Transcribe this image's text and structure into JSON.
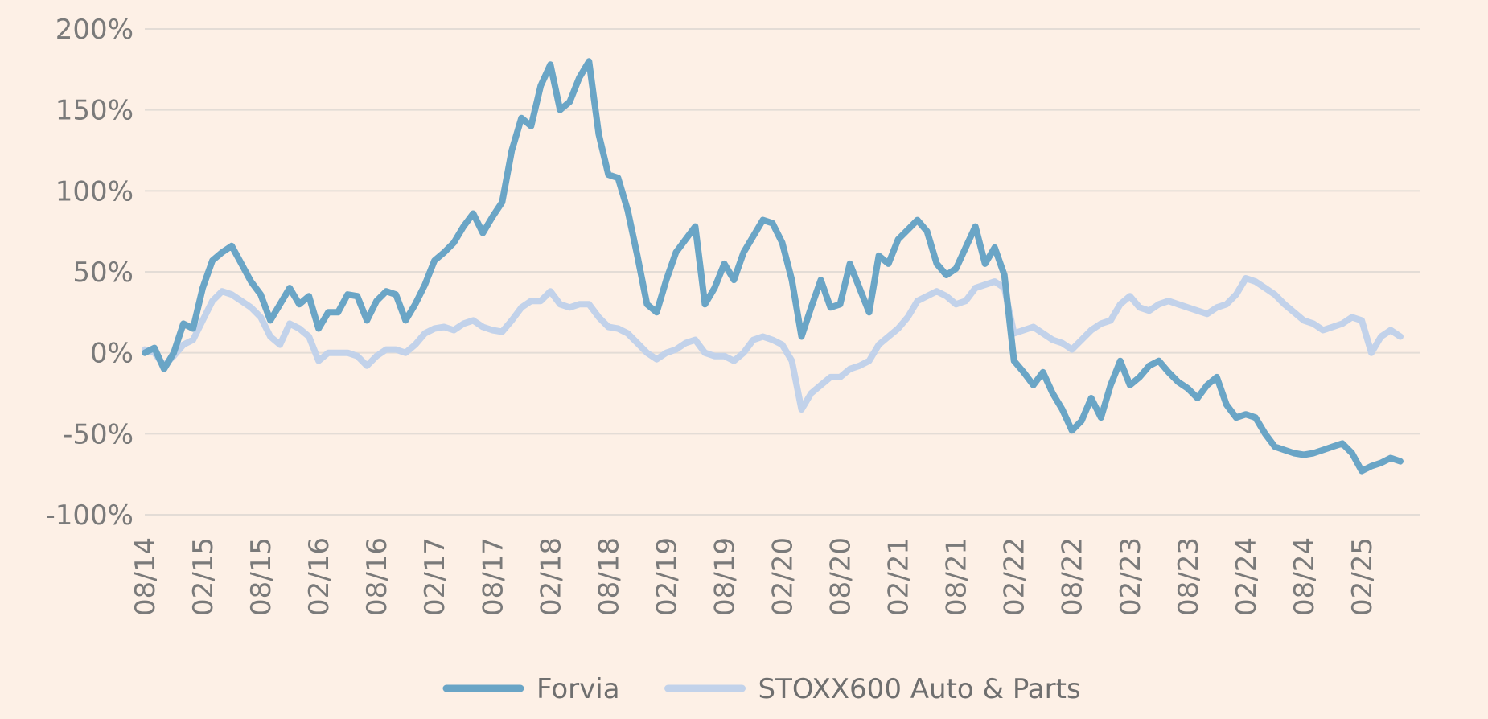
{
  "chart_data": {
    "type": "line",
    "title": "",
    "xlabel": "",
    "ylabel": "",
    "ylim": [
      -100,
      200
    ],
    "y_ticks": [
      200,
      150,
      100,
      50,
      0,
      -50,
      -100
    ],
    "y_tick_labels": [
      "200%",
      "150%",
      "100%",
      "50%",
      "0%",
      "-50%",
      "-100%"
    ],
    "x_range": [
      "2014-08",
      "2025-08"
    ],
    "x_ticks": [
      "2014-08",
      "2015-02",
      "2015-08",
      "2016-02",
      "2016-08",
      "2017-02",
      "2017-08",
      "2018-02",
      "2018-08",
      "2019-02",
      "2019-08",
      "2020-02",
      "2020-08",
      "2021-02",
      "2021-08",
      "2022-02",
      "2022-08",
      "2023-02",
      "2023-08",
      "2024-02",
      "2024-08",
      "2025-02"
    ],
    "x_tick_labels": [
      "08/14",
      "02/15",
      "08/15",
      "02/16",
      "08/16",
      "02/17",
      "08/17",
      "02/18",
      "08/18",
      "02/19",
      "08/19",
      "02/20",
      "08/20",
      "02/21",
      "08/21",
      "02/22",
      "08/22",
      "02/23",
      "08/23",
      "02/24",
      "08/24",
      "02/25"
    ],
    "grid": "horizontal",
    "legend_position": "bottom",
    "series": [
      {
        "name": "Forvia",
        "color": "#6aa5c6",
        "points": [
          [
            "2014-08",
            0
          ],
          [
            "2014-09",
            3
          ],
          [
            "2014-10",
            -10
          ],
          [
            "2014-11",
            0
          ],
          [
            "2014-12",
            18
          ],
          [
            "2015-01",
            15
          ],
          [
            "2015-02",
            40
          ],
          [
            "2015-03",
            57
          ],
          [
            "2015-04",
            62
          ],
          [
            "2015-05",
            66
          ],
          [
            "2015-06",
            55
          ],
          [
            "2015-07",
            44
          ],
          [
            "2015-08",
            36
          ],
          [
            "2015-09",
            20
          ],
          [
            "2015-10",
            30
          ],
          [
            "2015-11",
            40
          ],
          [
            "2015-12",
            30
          ],
          [
            "2016-01",
            35
          ],
          [
            "2016-02",
            15
          ],
          [
            "2016-03",
            25
          ],
          [
            "2016-04",
            25
          ],
          [
            "2016-05",
            36
          ],
          [
            "2016-06",
            35
          ],
          [
            "2016-07",
            20
          ],
          [
            "2016-08",
            32
          ],
          [
            "2016-09",
            38
          ],
          [
            "2016-10",
            36
          ],
          [
            "2016-11",
            20
          ],
          [
            "2016-12",
            30
          ],
          [
            "2017-01",
            42
          ],
          [
            "2017-02",
            57
          ],
          [
            "2017-03",
            62
          ],
          [
            "2017-04",
            68
          ],
          [
            "2017-05",
            78
          ],
          [
            "2017-06",
            86
          ],
          [
            "2017-07",
            74
          ],
          [
            "2017-08",
            84
          ],
          [
            "2017-09",
            93
          ],
          [
            "2017-10",
            125
          ],
          [
            "2017-11",
            145
          ],
          [
            "2017-12",
            140
          ],
          [
            "2018-01",
            165
          ],
          [
            "2018-02",
            178
          ],
          [
            "2018-03",
            150
          ],
          [
            "2018-04",
            155
          ],
          [
            "2018-05",
            170
          ],
          [
            "2018-06",
            180
          ],
          [
            "2018-07",
            135
          ],
          [
            "2018-08",
            110
          ],
          [
            "2018-09",
            108
          ],
          [
            "2018-10",
            88
          ],
          [
            "2018-11",
            60
          ],
          [
            "2018-12",
            30
          ],
          [
            "2019-01",
            25
          ],
          [
            "2019-02",
            45
          ],
          [
            "2019-03",
            62
          ],
          [
            "2019-04",
            70
          ],
          [
            "2019-05",
            78
          ],
          [
            "2019-06",
            30
          ],
          [
            "2019-07",
            40
          ],
          [
            "2019-08",
            55
          ],
          [
            "2019-09",
            45
          ],
          [
            "2019-10",
            62
          ],
          [
            "2019-11",
            72
          ],
          [
            "2019-12",
            82
          ],
          [
            "2020-01",
            80
          ],
          [
            "2020-02",
            68
          ],
          [
            "2020-03",
            45
          ],
          [
            "2020-04",
            10
          ],
          [
            "2020-05",
            28
          ],
          [
            "2020-06",
            45
          ],
          [
            "2020-07",
            28
          ],
          [
            "2020-08",
            30
          ],
          [
            "2020-09",
            55
          ],
          [
            "2020-10",
            40
          ],
          [
            "2020-11",
            25
          ],
          [
            "2020-12",
            60
          ],
          [
            "2021-01",
            55
          ],
          [
            "2021-02",
            70
          ],
          [
            "2021-03",
            76
          ],
          [
            "2021-04",
            82
          ],
          [
            "2021-05",
            75
          ],
          [
            "2021-06",
            55
          ],
          [
            "2021-07",
            48
          ],
          [
            "2021-08",
            52
          ],
          [
            "2021-09",
            65
          ],
          [
            "2021-10",
            78
          ],
          [
            "2021-11",
            55
          ],
          [
            "2021-12",
            65
          ],
          [
            "2022-01",
            48
          ],
          [
            "2022-02",
            -5
          ],
          [
            "2022-03",
            -12
          ],
          [
            "2022-04",
            -20
          ],
          [
            "2022-05",
            -12
          ],
          [
            "2022-06",
            -25
          ],
          [
            "2022-07",
            -35
          ],
          [
            "2022-08",
            -48
          ],
          [
            "2022-09",
            -42
          ],
          [
            "2022-10",
            -28
          ],
          [
            "2022-11",
            -40
          ],
          [
            "2022-12",
            -20
          ],
          [
            "2023-01",
            -5
          ],
          [
            "2023-02",
            -20
          ],
          [
            "2023-03",
            -15
          ],
          [
            "2023-04",
            -8
          ],
          [
            "2023-05",
            -5
          ],
          [
            "2023-06",
            -12
          ],
          [
            "2023-07",
            -18
          ],
          [
            "2023-08",
            -22
          ],
          [
            "2023-09",
            -28
          ],
          [
            "2023-10",
            -20
          ],
          [
            "2023-11",
            -15
          ],
          [
            "2023-12",
            -32
          ],
          [
            "2024-01",
            -40
          ],
          [
            "2024-02",
            -38
          ],
          [
            "2024-03",
            -40
          ],
          [
            "2024-04",
            -50
          ],
          [
            "2024-05",
            -58
          ],
          [
            "2024-06",
            -60
          ],
          [
            "2024-07",
            -62
          ],
          [
            "2024-08",
            -63
          ],
          [
            "2024-09",
            -62
          ],
          [
            "2024-10",
            -60
          ],
          [
            "2024-11",
            -58
          ],
          [
            "2024-12",
            -56
          ],
          [
            "2025-01",
            -62
          ],
          [
            "2025-02",
            -73
          ],
          [
            "2025-03",
            -70
          ],
          [
            "2025-04",
            -68
          ],
          [
            "2025-05",
            -65
          ],
          [
            "2025-06",
            -67
          ]
        ]
      },
      {
        "name": "STOXX600 Auto & Parts",
        "color": "#c2d2ea",
        "points": [
          [
            "2014-08",
            2
          ],
          [
            "2014-09",
            0
          ],
          [
            "2014-10",
            -8
          ],
          [
            "2014-11",
            -2
          ],
          [
            "2014-12",
            5
          ],
          [
            "2015-01",
            8
          ],
          [
            "2015-02",
            20
          ],
          [
            "2015-03",
            32
          ],
          [
            "2015-04",
            38
          ],
          [
            "2015-05",
            36
          ],
          [
            "2015-06",
            32
          ],
          [
            "2015-07",
            28
          ],
          [
            "2015-08",
            22
          ],
          [
            "2015-09",
            10
          ],
          [
            "2015-10",
            5
          ],
          [
            "2015-11",
            18
          ],
          [
            "2015-12",
            15
          ],
          [
            "2016-01",
            10
          ],
          [
            "2016-02",
            -5
          ],
          [
            "2016-03",
            0
          ],
          [
            "2016-04",
            0
          ],
          [
            "2016-05",
            0
          ],
          [
            "2016-06",
            -2
          ],
          [
            "2016-07",
            -8
          ],
          [
            "2016-08",
            -2
          ],
          [
            "2016-09",
            2
          ],
          [
            "2016-10",
            2
          ],
          [
            "2016-11",
            0
          ],
          [
            "2016-12",
            5
          ],
          [
            "2017-01",
            12
          ],
          [
            "2017-02",
            15
          ],
          [
            "2017-03",
            16
          ],
          [
            "2017-04",
            14
          ],
          [
            "2017-05",
            18
          ],
          [
            "2017-06",
            20
          ],
          [
            "2017-07",
            16
          ],
          [
            "2017-08",
            14
          ],
          [
            "2017-09",
            13
          ],
          [
            "2017-10",
            20
          ],
          [
            "2017-11",
            28
          ],
          [
            "2017-12",
            32
          ],
          [
            "2018-01",
            32
          ],
          [
            "2018-02",
            38
          ],
          [
            "2018-03",
            30
          ],
          [
            "2018-04",
            28
          ],
          [
            "2018-05",
            30
          ],
          [
            "2018-06",
            30
          ],
          [
            "2018-07",
            22
          ],
          [
            "2018-08",
            16
          ],
          [
            "2018-09",
            15
          ],
          [
            "2018-10",
            12
          ],
          [
            "2018-11",
            6
          ],
          [
            "2018-12",
            0
          ],
          [
            "2019-01",
            -4
          ],
          [
            "2019-02",
            0
          ],
          [
            "2019-03",
            2
          ],
          [
            "2019-04",
            6
          ],
          [
            "2019-05",
            8
          ],
          [
            "2019-06",
            0
          ],
          [
            "2019-07",
            -2
          ],
          [
            "2019-08",
            -2
          ],
          [
            "2019-09",
            -5
          ],
          [
            "2019-10",
            0
          ],
          [
            "2019-11",
            8
          ],
          [
            "2019-12",
            10
          ],
          [
            "2020-01",
            8
          ],
          [
            "2020-02",
            5
          ],
          [
            "2020-03",
            -5
          ],
          [
            "2020-04",
            -35
          ],
          [
            "2020-05",
            -25
          ],
          [
            "2020-06",
            -20
          ],
          [
            "2020-07",
            -15
          ],
          [
            "2020-08",
            -15
          ],
          [
            "2020-09",
            -10
          ],
          [
            "2020-10",
            -8
          ],
          [
            "2020-11",
            -5
          ],
          [
            "2020-12",
            5
          ],
          [
            "2021-01",
            10
          ],
          [
            "2021-02",
            15
          ],
          [
            "2021-03",
            22
          ],
          [
            "2021-04",
            32
          ],
          [
            "2021-05",
            35
          ],
          [
            "2021-06",
            38
          ],
          [
            "2021-07",
            35
          ],
          [
            "2021-08",
            30
          ],
          [
            "2021-09",
            32
          ],
          [
            "2021-10",
            40
          ],
          [
            "2021-11",
            42
          ],
          [
            "2021-12",
            44
          ],
          [
            "2022-01",
            40
          ],
          [
            "2022-02",
            12
          ],
          [
            "2022-03",
            14
          ],
          [
            "2022-04",
            16
          ],
          [
            "2022-05",
            12
          ],
          [
            "2022-06",
            8
          ],
          [
            "2022-07",
            6
          ],
          [
            "2022-08",
            2
          ],
          [
            "2022-09",
            8
          ],
          [
            "2022-10",
            14
          ],
          [
            "2022-11",
            18
          ],
          [
            "2022-12",
            20
          ],
          [
            "2023-01",
            30
          ],
          [
            "2023-02",
            35
          ],
          [
            "2023-03",
            28
          ],
          [
            "2023-04",
            26
          ],
          [
            "2023-05",
            30
          ],
          [
            "2023-06",
            32
          ],
          [
            "2023-07",
            30
          ],
          [
            "2023-08",
            28
          ],
          [
            "2023-09",
            26
          ],
          [
            "2023-10",
            24
          ],
          [
            "2023-11",
            28
          ],
          [
            "2023-12",
            30
          ],
          [
            "2024-01",
            36
          ],
          [
            "2024-02",
            46
          ],
          [
            "2024-03",
            44
          ],
          [
            "2024-04",
            40
          ],
          [
            "2024-05",
            36
          ],
          [
            "2024-06",
            30
          ],
          [
            "2024-07",
            25
          ],
          [
            "2024-08",
            20
          ],
          [
            "2024-09",
            18
          ],
          [
            "2024-10",
            14
          ],
          [
            "2024-11",
            16
          ],
          [
            "2024-12",
            18
          ],
          [
            "2025-01",
            22
          ],
          [
            "2025-02",
            20
          ],
          [
            "2025-03",
            0
          ],
          [
            "2025-04",
            10
          ],
          [
            "2025-05",
            14
          ],
          [
            "2025-06",
            10
          ]
        ]
      }
    ]
  }
}
